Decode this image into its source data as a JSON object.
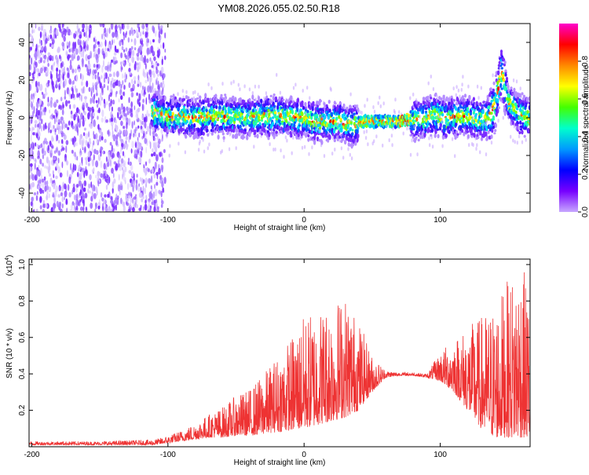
{
  "chart_data": [
    {
      "type": "heatmap",
      "title": "YM08.2026.055.02.50.R18",
      "xlabel": "Height of straight line (km)",
      "ylabel": "Frequency (Hz)",
      "xlim": [
        -202,
        166
      ],
      "ylim": [
        -50,
        50
      ],
      "x_ticks": [
        "-200",
        "-100",
        "0",
        "100"
      ],
      "x_tick_values": [
        -200,
        -100,
        0,
        100
      ],
      "y_ticks": [
        "40",
        "20",
        "0",
        "-20",
        "-40"
      ],
      "y_tick_values": [
        40,
        20,
        0,
        -20,
        -40
      ],
      "noise_region_x": [
        -202,
        -102
      ],
      "signal_start_x": -112,
      "ridge": {
        "x": [
          -112,
          -100,
          -80,
          -60,
          -40,
          -20,
          -5,
          10,
          25,
          35,
          45,
          60,
          72,
          75,
          85,
          90,
          95,
          100,
          105,
          110,
          118,
          125,
          130,
          135,
          140,
          145,
          150,
          158,
          166
        ],
        "y": [
          3,
          1,
          0,
          1,
          0,
          1,
          0,
          -2,
          -2,
          -4,
          -2,
          -2,
          -2,
          -1,
          -1,
          0,
          2,
          1,
          -1,
          0,
          1,
          0,
          -1,
          0,
          5,
          25,
          8,
          2,
          0
        ]
      },
      "colorbar": {
        "label": "Normalized spectral amplitude",
        "range": [
          0,
          1
        ],
        "ticks": [
          "0.0",
          "0.2",
          "0.4",
          "0.6",
          "0.8"
        ],
        "tick_values": [
          0.0,
          0.2,
          0.4,
          0.6,
          0.8
        ],
        "colors": [
          "#ff00cc",
          "#ff0000",
          "#ff8800",
          "#ffff00",
          "#44ff00",
          "#00ffcc",
          "#0099ff",
          "#0000ff",
          "#7700ff",
          "#c8a8ff"
        ]
      }
    },
    {
      "type": "line",
      "xlabel": "Height of straight line (km)",
      "ylabel": "SNR (10 * v/v)",
      "y_multiplier_label": "(x10",
      "y_multiplier_exp": "4",
      "y_multiplier_close": ")",
      "xlim": [
        -202,
        166
      ],
      "ylim": [
        0,
        1.03
      ],
      "x_ticks": [
        "-200",
        "-100",
        "0",
        "100"
      ],
      "x_tick_values": [
        -200,
        -100,
        0,
        100
      ],
      "y_ticks": [
        "0.2",
        "0.4",
        "0.6",
        "0.8",
        "1.0"
      ],
      "y_tick_values": [
        0.2,
        0.4,
        0.6,
        0.8,
        1.0
      ],
      "series": [
        {
          "color": "#ee3333",
          "envelope": {
            "x": [
              -202,
              -150,
              -110,
              -100,
              -90,
              -80,
              -70,
              -60,
              -50,
              -40,
              -30,
              -20,
              -10,
              0,
              10,
              20,
              30,
              40,
              50,
              60,
              70,
              80,
              90,
              100,
              110,
              120,
              130,
              140,
              150,
              160,
              166
            ],
            "low": [
              0.01,
              0.01,
              0.01,
              0.02,
              0.03,
              0.04,
              0.05,
              0.05,
              0.06,
              0.06,
              0.07,
              0.08,
              0.09,
              0.1,
              0.12,
              0.14,
              0.16,
              0.2,
              0.3,
              0.38,
              0.39,
              0.39,
              0.38,
              0.36,
              0.3,
              0.2,
              0.1,
              0.05,
              0.05,
              0.05,
              0.05
            ],
            "high": [
              0.03,
              0.03,
              0.04,
              0.06,
              0.09,
              0.13,
              0.18,
              0.22,
              0.28,
              0.32,
              0.4,
              0.5,
              0.6,
              0.72,
              0.76,
              0.8,
              0.84,
              0.7,
              0.5,
              0.42,
              0.41,
              0.41,
              0.4,
              0.52,
              0.6,
              0.66,
              0.72,
              0.78,
              0.92,
              1.02,
              0.8
            ]
          }
        }
      ]
    }
  ]
}
